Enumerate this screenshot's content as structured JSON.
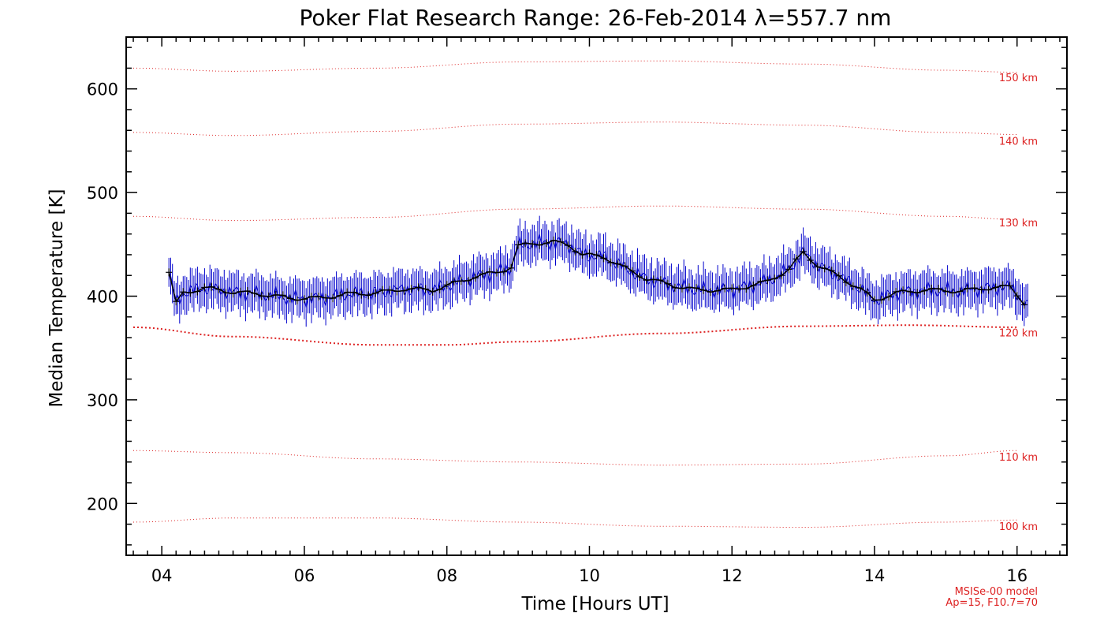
{
  "chart_data": {
    "type": "line",
    "title": "Poker Flat Research Range: 26-Feb-2014 λ=557.7 nm",
    "xlabel": "Time [Hours UT]",
    "ylabel": "Median Temperature [K]",
    "xlim": [
      3.5,
      16.7
    ],
    "ylim": [
      150,
      650
    ],
    "xticks": [
      4,
      6,
      8,
      10,
      12,
      14,
      16
    ],
    "xtick_labels": [
      "04",
      "06",
      "08",
      "10",
      "12",
      "14",
      "16"
    ],
    "yticks": [
      200,
      300,
      400,
      500,
      600
    ],
    "ytick_labels": [
      "200",
      "300",
      "400",
      "500",
      "600"
    ],
    "grid": false,
    "measurement_color": "#0000cc",
    "median_color": "#000000",
    "model_color": "#dd2222",
    "measurement": {
      "x_start": 4.1,
      "x_end": 16.15,
      "keyframes": [
        [
          4.1,
          423
        ],
        [
          4.2,
          393
        ],
        [
          4.3,
          403
        ],
        [
          4.6,
          408
        ],
        [
          5.0,
          404
        ],
        [
          5.4,
          402
        ],
        [
          5.8,
          398
        ],
        [
          6.2,
          398
        ],
        [
          6.6,
          402
        ],
        [
          7.0,
          403
        ],
        [
          7.4,
          407
        ],
        [
          7.8,
          406
        ],
        [
          8.0,
          410
        ],
        [
          8.4,
          419
        ],
        [
          8.7,
          423
        ],
        [
          8.9,
          428
        ],
        [
          9.0,
          448
        ],
        [
          9.2,
          451
        ],
        [
          9.5,
          452
        ],
        [
          9.7,
          450
        ],
        [
          9.9,
          440
        ],
        [
          10.2,
          438
        ],
        [
          10.5,
          427
        ],
        [
          10.8,
          417
        ],
        [
          11.2,
          410
        ],
        [
          11.5,
          406
        ],
        [
          12.0,
          406
        ],
        [
          12.5,
          414
        ],
        [
          12.8,
          426
        ],
        [
          13.0,
          442
        ],
        [
          13.2,
          430
        ],
        [
          13.5,
          419
        ],
        [
          13.8,
          407
        ],
        [
          14.0,
          396
        ],
        [
          14.3,
          403
        ],
        [
          14.7,
          406
        ],
        [
          15.2,
          405
        ],
        [
          15.6,
          408
        ],
        [
          15.9,
          409
        ],
        [
          16.05,
          398
        ],
        [
          16.15,
          389
        ]
      ],
      "error_bar_k": 14
    },
    "model_curves": [
      {
        "label": "150 km",
        "points": [
          [
            3.6,
            620
          ],
          [
            5.0,
            617
          ],
          [
            7.0,
            620
          ],
          [
            9.0,
            626
          ],
          [
            11.0,
            627
          ],
          [
            13.0,
            624
          ],
          [
            15.0,
            618
          ],
          [
            16.0,
            616
          ]
        ]
      },
      {
        "label": "140 km",
        "points": [
          [
            3.6,
            558
          ],
          [
            5.0,
            555
          ],
          [
            7.0,
            559
          ],
          [
            9.0,
            566
          ],
          [
            11.0,
            568
          ],
          [
            13.0,
            565
          ],
          [
            15.0,
            558
          ],
          [
            16.0,
            556
          ]
        ]
      },
      {
        "label": "130 km",
        "points": [
          [
            3.6,
            477
          ],
          [
            5.0,
            473
          ],
          [
            7.0,
            476
          ],
          [
            9.0,
            484
          ],
          [
            11.0,
            487
          ],
          [
            13.0,
            484
          ],
          [
            15.0,
            477
          ],
          [
            16.0,
            474
          ]
        ]
      },
      {
        "label": "120 km",
        "points": [
          [
            3.6,
            370
          ],
          [
            5.0,
            361
          ],
          [
            7.0,
            353
          ],
          [
            8.0,
            353
          ],
          [
            9.0,
            356
          ],
          [
            11.0,
            364
          ],
          [
            13.0,
            371
          ],
          [
            14.5,
            372
          ],
          [
            16.0,
            370
          ]
        ]
      },
      {
        "label": "110 km",
        "points": [
          [
            3.6,
            251
          ],
          [
            5.0,
            249
          ],
          [
            7.0,
            243
          ],
          [
            9.0,
            240
          ],
          [
            11.0,
            237
          ],
          [
            13.0,
            238
          ],
          [
            15.0,
            246
          ],
          [
            16.0,
            251
          ]
        ]
      },
      {
        "label": "100 km",
        "points": [
          [
            3.6,
            182
          ],
          [
            5.0,
            186
          ],
          [
            7.0,
            186
          ],
          [
            9.0,
            182
          ],
          [
            11.0,
            178
          ],
          [
            13.0,
            177
          ],
          [
            15.0,
            182
          ],
          [
            16.0,
            184
          ]
        ]
      }
    ],
    "model_labels_y": {
      "150 km": 611,
      "140 km": 550,
      "130 km": 471,
      "120 km": 365,
      "110 km": 245,
      "100 km": 178
    }
  },
  "notes": {
    "model_name": "MSISe-00 model",
    "model_params": "Ap=15, F10.7=70"
  }
}
